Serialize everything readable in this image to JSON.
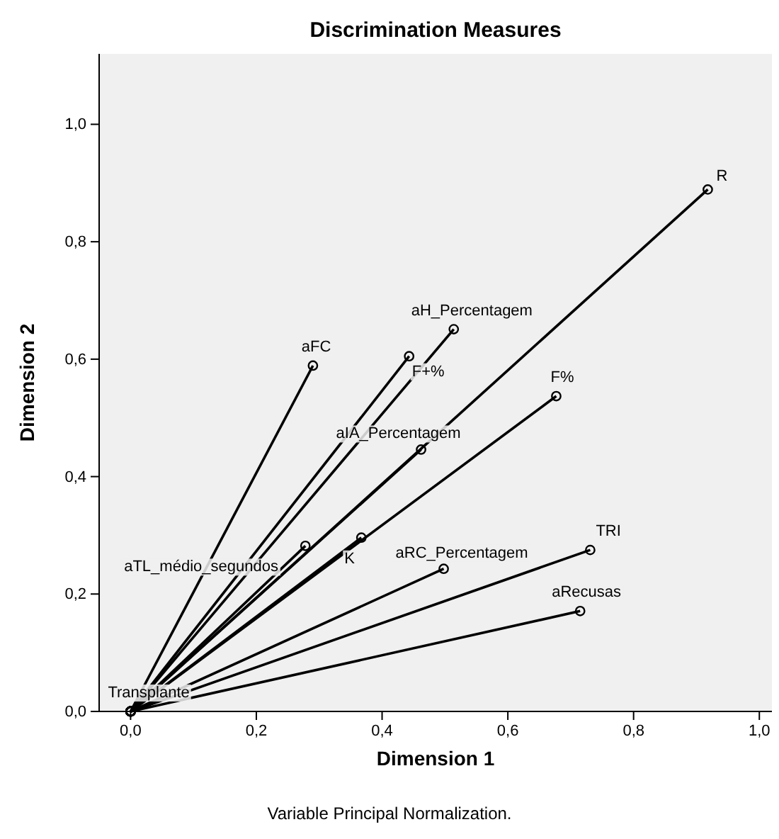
{
  "chart_data": {
    "type": "line",
    "title": "Discrimination Measures",
    "xlabel": "Dimension 1",
    "ylabel": "Dimension 2",
    "annotations": [
      "Variable Principal Normalization."
    ],
    "xlim": [
      -0.05,
      1.02
    ],
    "ylim": [
      0,
      1.12
    ],
    "xticks": [
      {
        "value": 0,
        "label": "0,0"
      },
      {
        "value": 0.2,
        "label": "0,2"
      },
      {
        "value": 0.4,
        "label": "0,4"
      },
      {
        "value": 0.6,
        "label": "0,6"
      },
      {
        "value": 0.8,
        "label": "0,8"
      },
      {
        "value": 1,
        "label": "1,0"
      }
    ],
    "yticks": [
      {
        "value": 0,
        "label": "0,0"
      },
      {
        "value": 0.2,
        "label": "0,2"
      },
      {
        "value": 0.4,
        "label": "0,4"
      },
      {
        "value": 0.6,
        "label": "0,6"
      },
      {
        "value": 0.8,
        "label": "0,8"
      },
      {
        "value": 1,
        "label": "1,0"
      }
    ],
    "marker": "circle",
    "legend": false,
    "grid": false,
    "series": [
      {
        "name": "R",
        "color": "#000000",
        "x": [
          0,
          0.918
        ],
        "values": [
          0,
          0.889
        ]
      },
      {
        "name": "aH_Percentagem",
        "color": "#000000",
        "x": [
          0,
          0.514
        ],
        "values": [
          0,
          0.651
        ]
      },
      {
        "name": "F+%",
        "color": "#000000",
        "x": [
          0,
          0.443
        ],
        "values": [
          0,
          0.605
        ]
      },
      {
        "name": "aFC",
        "color": "#000000",
        "x": [
          0,
          0.29
        ],
        "values": [
          0,
          0.589
        ]
      },
      {
        "name": "F%",
        "color": "#000000",
        "x": [
          0,
          0.677
        ],
        "values": [
          0,
          0.537
        ]
      },
      {
        "name": "aIA_Percentagem",
        "color": "#000000",
        "x": [
          0,
          0.462
        ],
        "values": [
          0,
          0.446
        ]
      },
      {
        "name": "K",
        "color": "#000000",
        "x": [
          0,
          0.367
        ],
        "values": [
          0,
          0.296
        ]
      },
      {
        "name": "aTL_médio_segundos",
        "color": "#000000",
        "x": [
          0,
          0.278
        ],
        "values": [
          0,
          0.282
        ]
      },
      {
        "name": "TRI",
        "color": "#000000",
        "x": [
          0,
          0.731
        ],
        "values": [
          0,
          0.275
        ]
      },
      {
        "name": "aRC_Percentagem",
        "color": "#000000",
        "x": [
          0,
          0.498
        ],
        "values": [
          0,
          0.243
        ]
      },
      {
        "name": "aRecusas",
        "color": "#000000",
        "x": [
          0,
          0.715
        ],
        "values": [
          0,
          0.171
        ]
      },
      {
        "name": "Transplante",
        "type": "scatter",
        "color": "#000000",
        "x": [
          0
        ],
        "values": [
          0
        ]
      }
    ]
  }
}
